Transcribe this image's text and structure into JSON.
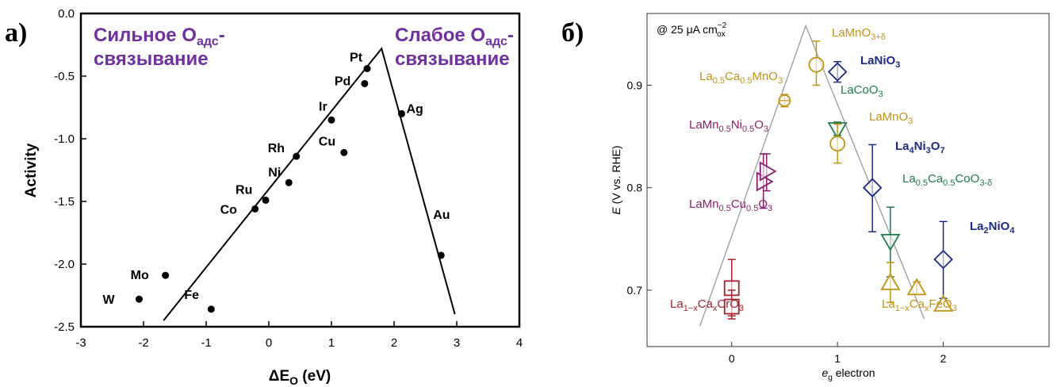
{
  "chart_data": [
    {
      "type": "scatter",
      "panel_label": "а)",
      "xlabel": "ΔE",
      "xlabel_sub": "O",
      "xlabel_unit": "(eV)",
      "ylabel": "Activity",
      "xlim": [
        -3,
        4
      ],
      "ylim": [
        -2.5,
        0.0
      ],
      "x_ticks": [
        "-3",
        "-2",
        "-1",
        "0",
        "1",
        "2",
        "3",
        "4"
      ],
      "y_ticks": [
        "0.0",
        "-0.5",
        "-1.0",
        "-1.5",
        "-2.0",
        "-2.5"
      ],
      "annotations": {
        "left_line1_a": "Сильное О",
        "left_line1_sub": "адс",
        "left_line1_b": "-",
        "left_line2": "связывание",
        "right_line1_a": "Слабое О",
        "right_line1_sub": "адс",
        "right_line1_b": "-",
        "right_line2": "связывание"
      },
      "points": [
        {
          "label": "Pt",
          "x": 1.57,
          "y": -0.44
        },
        {
          "label": "Pd",
          "x": 1.53,
          "y": -0.56
        },
        {
          "label": "Ir",
          "x": 1.0,
          "y": -0.85
        },
        {
          "label": "Ag",
          "x": 2.12,
          "y": -0.8
        },
        {
          "label": "Cu",
          "x": 1.2,
          "y": -1.11
        },
        {
          "label": "Rh",
          "x": 0.44,
          "y": -1.14
        },
        {
          "label": "Ni",
          "x": 0.32,
          "y": -1.35
        },
        {
          "label": "Ru",
          "x": -0.05,
          "y": -1.49
        },
        {
          "label": "Co",
          "x": -0.22,
          "y": -1.56
        },
        {
          "label": "Au",
          "x": 2.75,
          "y": -1.93
        },
        {
          "label": "Mo",
          "x": -1.65,
          "y": -2.09
        },
        {
          "label": "W",
          "x": -2.07,
          "y": -2.28
        },
        {
          "label": "Fe",
          "x": -0.92,
          "y": -2.36
        }
      ],
      "volcano_line": [
        [
          -1.68,
          -2.45
        ],
        [
          1.8,
          -0.28
        ],
        [
          2.97,
          -2.4
        ]
      ]
    },
    {
      "type": "scatter",
      "panel_label": "б)",
      "corner_text": "@ 25 μA cm",
      "corner_sup": "−2",
      "corner_sub": "ox",
      "xlabel_italic": "e",
      "xlabel_sub": "g",
      "xlabel_rest": " electron",
      "ylabel_italic": "E",
      "ylabel_rest": " (V vs. RHE)",
      "xlim": [
        -0.8,
        3.0
      ],
      "ylim": [
        0.645,
        0.97
      ],
      "x_ticks": [
        "0",
        "1",
        "2"
      ],
      "y_ticks": [
        "0.7",
        "0.8",
        "0.9"
      ],
      "trend_line": [
        [
          -0.3,
          0.665
        ],
        [
          0.7,
          0.958
        ],
        [
          1.82,
          0.672
        ]
      ],
      "colors": {
        "red": "#a4232e",
        "orange": "#c29312",
        "purple": "#8a1e6e",
        "blue": "#1c2a86",
        "green": "#1f7a4c",
        "black": "#000000"
      },
      "points": [
        {
          "marker": "square",
          "color": "red",
          "x": 0.0,
          "y": 0.702,
          "err": [
            0.675,
            0.73
          ]
        },
        {
          "marker": "square",
          "color": "red",
          "x": 0.0,
          "y": 0.684,
          "err": [
            0.672,
            0.7
          ]
        },
        {
          "marker": "triangle-right",
          "color": "purple",
          "x": 0.3,
          "y": 0.806,
          "err": [
            0.78,
            0.833
          ]
        },
        {
          "marker": "triangle-right",
          "color": "purple",
          "x": 0.33,
          "y": 0.816,
          "err": [
            0.797,
            0.833
          ]
        },
        {
          "marker": "circle-cross",
          "color": "orange",
          "x": 0.5,
          "y": 0.885,
          "err": [
            0.879,
            0.891
          ]
        },
        {
          "marker": "circle",
          "color": "orange",
          "x": 0.8,
          "y": 0.92,
          "err": [
            0.9,
            0.943
          ]
        },
        {
          "marker": "diamond",
          "color": "blue",
          "x": 1.0,
          "y": 0.913,
          "err": [
            0.903,
            0.923
          ]
        },
        {
          "marker": "triangle-down",
          "color": "green",
          "x": 1.0,
          "y": 0.857,
          "err": [
            0.851,
            0.864
          ]
        },
        {
          "marker": "circle",
          "color": "orange",
          "x": 1.0,
          "y": 0.843,
          "err": [
            0.824,
            0.862
          ]
        },
        {
          "marker": "diamond",
          "color": "blue",
          "x": 1.33,
          "y": 0.8,
          "err": [
            0.757,
            0.842
          ]
        },
        {
          "marker": "triangle-down",
          "color": "green",
          "x": 1.5,
          "y": 0.748,
          "err": [
            0.713,
            0.781
          ]
        },
        {
          "marker": "triangle-up",
          "color": "orange",
          "x": 1.5,
          "y": 0.707,
          "err": [
            0.688,
            0.727
          ]
        },
        {
          "marker": "triangle-up",
          "color": "orange",
          "x": 1.75,
          "y": 0.702,
          "err": [
            0.696,
            0.708
          ]
        },
        {
          "marker": "diamond",
          "color": "blue",
          "x": 2.0,
          "y": 0.73,
          "err": [
            0.692,
            0.767
          ]
        },
        {
          "marker": "triangle-up",
          "color": "orange",
          "x": 2.0,
          "y": 0.686,
          "err": null
        }
      ],
      "labels": [
        {
          "name": "LaMnO3+δ",
          "color": "orange",
          "bold": false
        },
        {
          "name": "La0.5Ca0.5MnO3",
          "color": "orange",
          "bold": false
        },
        {
          "name": "LaNiO3",
          "color": "blue",
          "bold": true
        },
        {
          "name": "LaCoO3",
          "color": "green",
          "bold": false
        },
        {
          "name": "LaMnO3",
          "color": "orange",
          "bold": false
        },
        {
          "name": "LaMn0.5Ni0.5O3",
          "color": "purple",
          "bold": false
        },
        {
          "name": "La4Ni3O7",
          "color": "blue",
          "bold": true
        },
        {
          "name": "La0.5Ca0.5CoO3-δ",
          "color": "green",
          "bold": false
        },
        {
          "name": "LaMn0.5Cu0.5O3",
          "color": "purple",
          "bold": false
        },
        {
          "name": "La2NiO4",
          "color": "blue",
          "bold": true
        },
        {
          "name": "La1−xCaxCrO3",
          "color": "red",
          "bold": false
        },
        {
          "name": "La1−xCaxFeO3",
          "color": "orange",
          "bold": false
        }
      ]
    }
  ]
}
